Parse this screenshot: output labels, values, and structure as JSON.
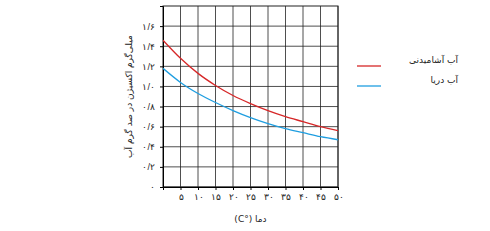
{
  "chart_data": {
    "type": "line",
    "x_label": "دما (°C)",
    "y_label": "میلی‌گرم اکسیژن در صد گرم آب",
    "x": [
      0,
      5,
      10,
      15,
      20,
      25,
      30,
      35,
      40,
      45,
      50
    ],
    "series": [
      {
        "name": "آب آشامیدنی",
        "color": "#d62728",
        "values": [
          1.46,
          1.28,
          1.13,
          1.01,
          0.91,
          0.83,
          0.76,
          0.7,
          0.65,
          0.6,
          0.56
        ]
      },
      {
        "name": "آب دریا",
        "color": "#1f9ee0",
        "values": [
          1.18,
          1.04,
          0.93,
          0.84,
          0.76,
          0.69,
          0.63,
          0.58,
          0.54,
          0.5,
          0.47
        ]
      }
    ],
    "xlim": [
      0,
      50
    ],
    "xticks": [
      {
        "value": 5,
        "label": "۵"
      },
      {
        "value": 10,
        "label": "۱۰"
      },
      {
        "value": 15,
        "label": "۱۵"
      },
      {
        "value": 20,
        "label": "۲۰"
      },
      {
        "value": 25,
        "label": "۲۵"
      },
      {
        "value": 30,
        "label": "۳۰"
      },
      {
        "value": 35,
        "label": "۳۵"
      },
      {
        "value": 40,
        "label": "۴۰"
      },
      {
        "value": 45,
        "label": "۴۵"
      },
      {
        "value": 50,
        "label": "۵۰"
      }
    ],
    "ylim": [
      0,
      1.8
    ],
    "yticks": [
      {
        "value": 0,
        "label": "۰"
      },
      {
        "value": 0.2,
        "label": "۰/۲"
      },
      {
        "value": 0.4,
        "label": "۰/۴"
      },
      {
        "value": 0.6,
        "label": "۰/۶"
      },
      {
        "value": 0.8,
        "label": "۰/۸"
      },
      {
        "value": 1.0,
        "label": "۱/۰"
      },
      {
        "value": 1.2,
        "label": "۱/۲"
      },
      {
        "value": 1.4,
        "label": "۱/۴"
      },
      {
        "value": 1.6,
        "label": "۱/۶"
      }
    ],
    "grid": true,
    "legend": "right"
  }
}
